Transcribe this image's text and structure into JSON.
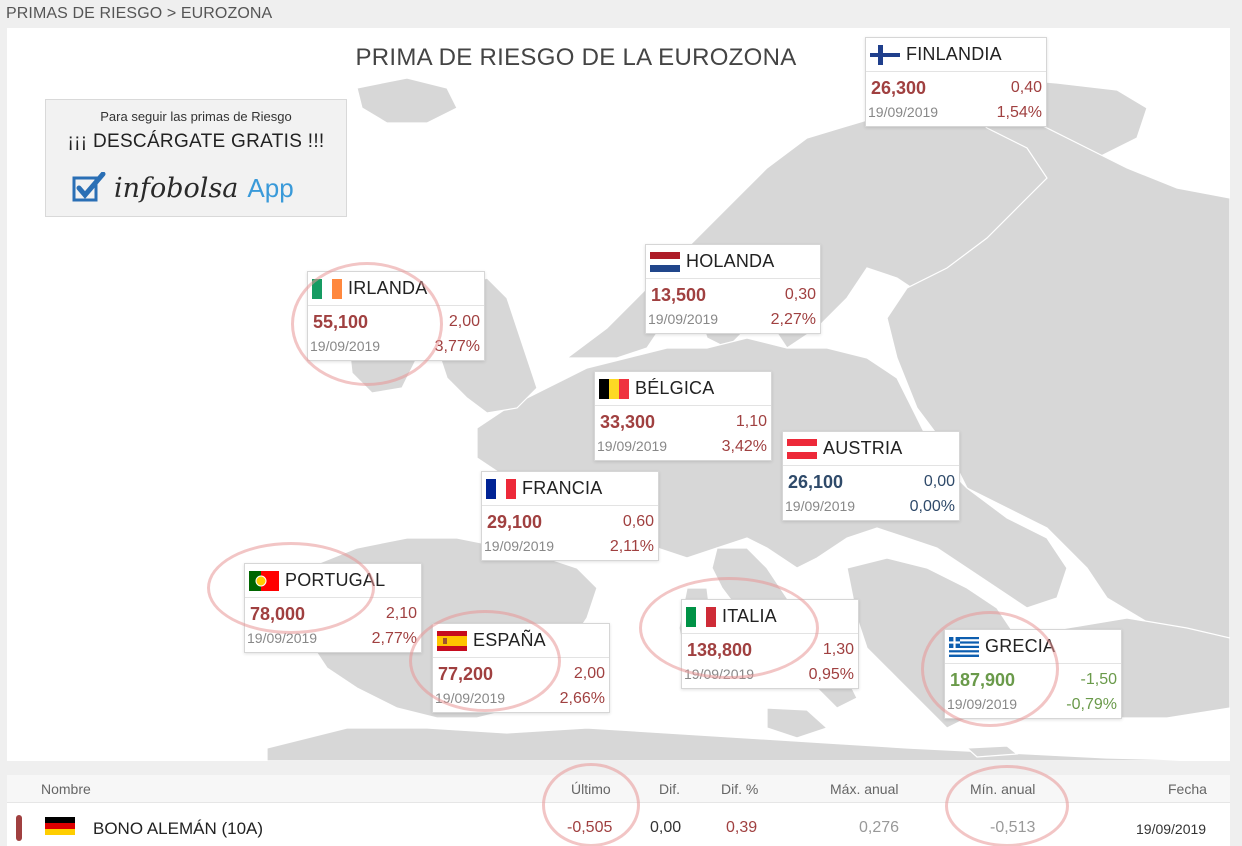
{
  "breadcrumb": {
    "parent": "PRIMAS DE RIESGO",
    "separator": ">",
    "current": "EUROZONA"
  },
  "map": {
    "title": "PRIMA DE RIESGO DE LA EUROZONA",
    "promo": {
      "line1": "Para seguir las primas de Riesgo",
      "line2": "¡¡¡ DESCÁRGATE GRATIS !!!",
      "brand": "infobolsa",
      "app": "App"
    },
    "countries": {
      "finlandia": {
        "name": "FINLANDIA",
        "value": "26,300",
        "dif": "0,40",
        "date": "19/09/2019",
        "pct": "1,54%"
      },
      "holanda": {
        "name": "HOLANDA",
        "value": "13,500",
        "dif": "0,30",
        "date": "19/09/2019",
        "pct": "2,27%"
      },
      "irlanda": {
        "name": "IRLANDA",
        "value": "55,100",
        "dif": "2,00",
        "date": "19/09/2019",
        "pct": "3,77%"
      },
      "belgica": {
        "name": "BÉLGICA",
        "value": "33,300",
        "dif": "1,10",
        "date": "19/09/2019",
        "pct": "3,42%"
      },
      "austria": {
        "name": "AUSTRIA",
        "value": "26,100",
        "dif": "0,00",
        "date": "19/09/2019",
        "pct": "0,00%"
      },
      "francia": {
        "name": "FRANCIA",
        "value": "29,100",
        "dif": "0,60",
        "date": "19/09/2019",
        "pct": "2,11%"
      },
      "portugal": {
        "name": "PORTUGAL",
        "value": "78,000",
        "dif": "2,10",
        "date": "19/09/2019",
        "pct": "2,77%"
      },
      "espana": {
        "name": "ESPAÑA",
        "value": "77,200",
        "dif": "2,00",
        "date": "19/09/2019",
        "pct": "2,66%"
      },
      "italia": {
        "name": "ITALIA",
        "value": "138,800",
        "dif": "1,30",
        "date": "19/09/2019",
        "pct": "0,95%"
      },
      "grecia": {
        "name": "GRECIA",
        "value": "187,900",
        "dif": "-1,50",
        "date": "19/09/2019",
        "pct": "-0,79%"
      }
    }
  },
  "table": {
    "headers": {
      "nombre": "Nombre",
      "ultimo": "Último",
      "dif": "Dif.",
      "dif_pct": "Dif. %",
      "max": "Máx. anual",
      "min": "Mín. anual",
      "fecha": "Fecha"
    },
    "rows": [
      {
        "name": "BONO ALEMÁN (10A)",
        "ultimo": "-0,505",
        "dif": "0,00",
        "dif_pct": "0,39",
        "max": "0,276",
        "min": "-0,513",
        "fecha": "19/09/2019"
      }
    ]
  },
  "colors": {
    "up": "#a04040",
    "neutral": "#2f4a6a",
    "down": "#6a9a4a",
    "land": "#d7d7d7",
    "accent": "#3a9ad9"
  }
}
